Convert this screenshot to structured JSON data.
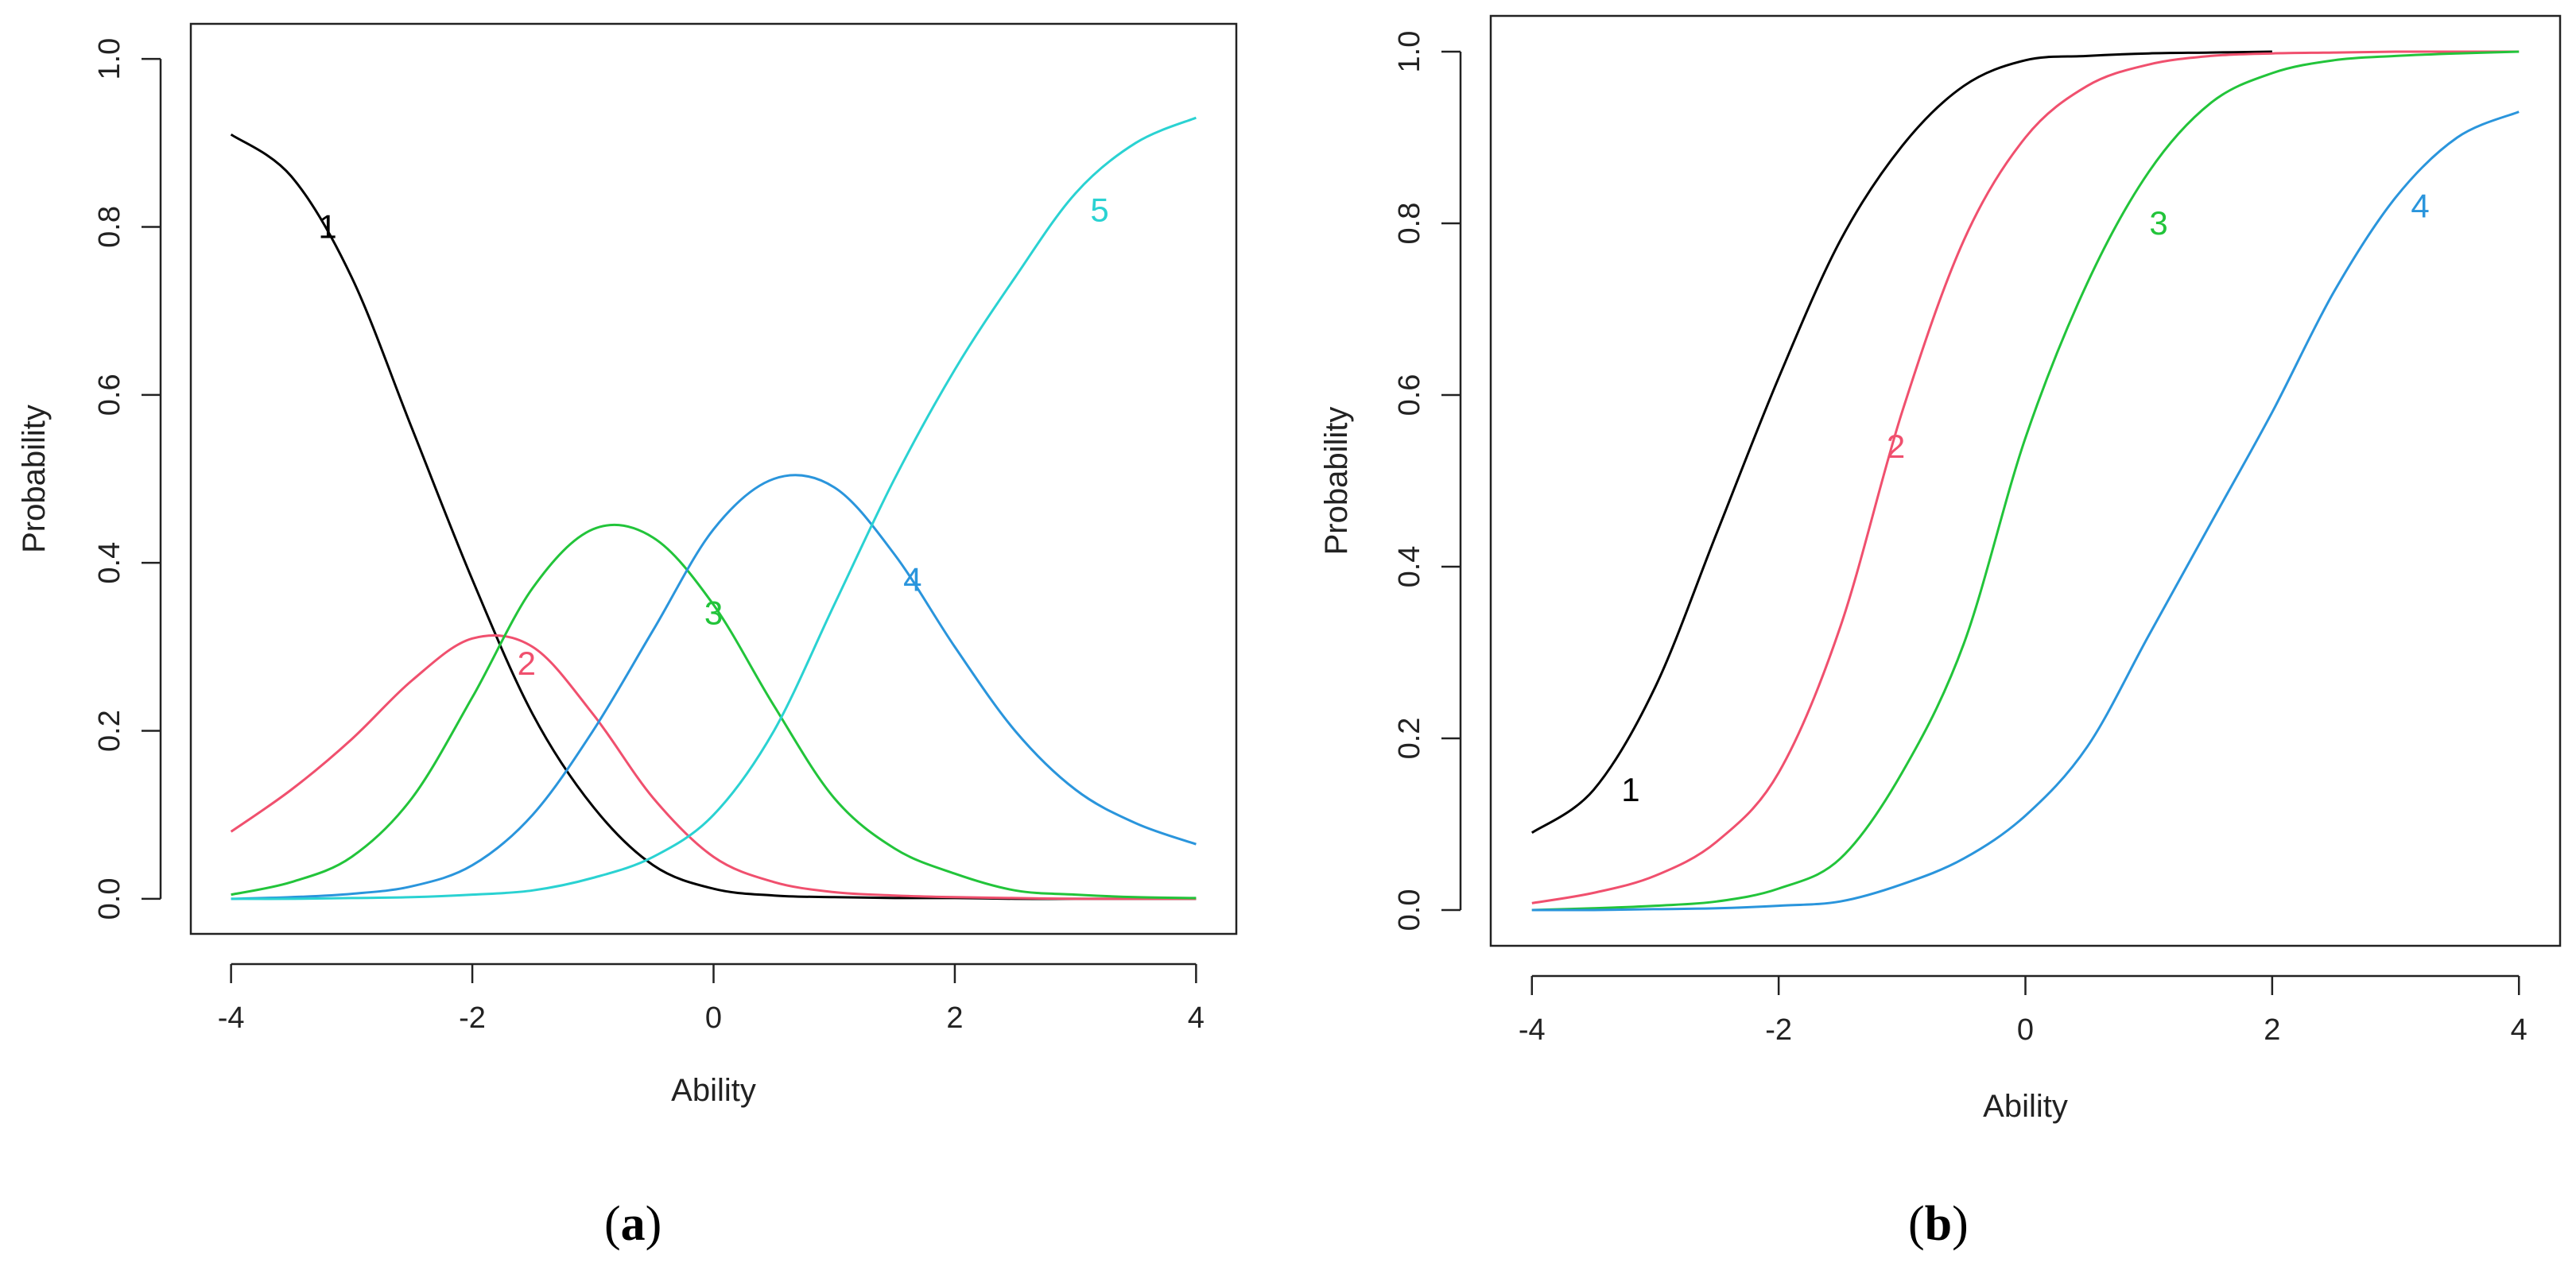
{
  "chart_data": [
    {
      "type": "line",
      "panel": "a",
      "caption_open": "(",
      "caption_letter": "a",
      "caption_close": ")",
      "xlabel": "Ability",
      "ylabel": "Probability",
      "xlim": [
        -4,
        4
      ],
      "ylim": [
        0,
        1
      ],
      "xticks": [
        -4,
        -2,
        0,
        2,
        4
      ],
      "xtick_labels": [
        "-4",
        "-2",
        "0",
        "2",
        "4"
      ],
      "yticks": [
        0,
        0.2,
        0.4,
        0.6,
        0.8,
        1.0
      ],
      "ytick_labels": [
        "0.0",
        "0.2",
        "0.4",
        "0.6",
        "0.8",
        "1.0"
      ],
      "series": [
        {
          "name": "1",
          "color": "#000000",
          "label_pos": [
            -3.2,
            0.8
          ],
          "x": [
            -4,
            -3.5,
            -3,
            -2.5,
            -2,
            -1.5,
            -1,
            -0.5,
            0,
            0.5,
            1,
            1.5,
            2,
            2.5,
            3,
            3.5,
            4
          ],
          "y": [
            0.91,
            0.86,
            0.74,
            0.56,
            0.38,
            0.22,
            0.11,
            0.04,
            0.012,
            0.004,
            0.002,
            0.001,
            0.001,
            0,
            0,
            0,
            0
          ]
        },
        {
          "name": "2",
          "color": "#f0506e",
          "label_pos": [
            -1.55,
            0.28
          ],
          "x": [
            -4,
            -3.5,
            -3,
            -2.5,
            -2,
            -1.5,
            -1,
            -0.5,
            0,
            0.5,
            1,
            1.5,
            2,
            2.5,
            3,
            3.5,
            4
          ],
          "y": [
            0.08,
            0.13,
            0.19,
            0.26,
            0.31,
            0.3,
            0.22,
            0.12,
            0.05,
            0.02,
            0.008,
            0.004,
            0.002,
            0.001,
            0,
            0,
            0
          ]
        },
        {
          "name": "3",
          "color": "#22c43a",
          "label_pos": [
            0.0,
            0.34
          ],
          "x": [
            -4,
            -3.5,
            -3,
            -2.5,
            -2,
            -1.5,
            -1,
            -0.5,
            0,
            0.5,
            1,
            1.5,
            2,
            2.5,
            3,
            3.5,
            4
          ],
          "y": [
            0.005,
            0.02,
            0.05,
            0.12,
            0.24,
            0.37,
            0.44,
            0.43,
            0.35,
            0.23,
            0.12,
            0.06,
            0.03,
            0.01,
            0.005,
            0.002,
            0.001
          ]
        },
        {
          "name": "4",
          "color": "#2a95dc",
          "label_pos": [
            1.65,
            0.38
          ],
          "x": [
            -4,
            -3.5,
            -3,
            -2.5,
            -2,
            -1.5,
            -1,
            -0.5,
            0,
            0.5,
            1,
            1.5,
            2,
            2.5,
            3,
            3.5,
            4
          ],
          "y": [
            0,
            0.002,
            0.006,
            0.015,
            0.04,
            0.1,
            0.2,
            0.32,
            0.44,
            0.5,
            0.49,
            0.41,
            0.3,
            0.2,
            0.13,
            0.09,
            0.065
          ]
        },
        {
          "name": "5",
          "color": "#2ad2d2",
          "label_pos": [
            3.2,
            0.82
          ],
          "x": [
            -4,
            -3.5,
            -3,
            -2.5,
            -2,
            -1.5,
            -1,
            -0.5,
            0,
            0.5,
            1,
            1.5,
            2,
            2.5,
            3,
            3.5,
            4
          ],
          "y": [
            0,
            0,
            0.001,
            0.002,
            0.005,
            0.01,
            0.025,
            0.05,
            0.1,
            0.2,
            0.35,
            0.5,
            0.63,
            0.74,
            0.84,
            0.9,
            0.93
          ]
        }
      ]
    },
    {
      "type": "line",
      "panel": "b",
      "caption_open": "(",
      "caption_letter": "b",
      "caption_close": ")",
      "xlabel": "Ability",
      "ylabel": "Probability",
      "xlim": [
        -4,
        4
      ],
      "ylim": [
        0,
        1
      ],
      "xticks": [
        -4,
        -2,
        0,
        2,
        4
      ],
      "xtick_labels": [
        "-4",
        "-2",
        "0",
        "2",
        "4"
      ],
      "yticks": [
        0,
        0.2,
        0.4,
        0.6,
        0.8,
        1.0
      ],
      "ytick_labels": [
        "0.0",
        "0.2",
        "0.4",
        "0.6",
        "0.8",
        "1.0"
      ],
      "series": [
        {
          "name": "1",
          "color": "#000000",
          "label_pos": [
            -3.2,
            0.14
          ],
          "x": [
            -4,
            -3.5,
            -3,
            -2.5,
            -2,
            -1.5,
            -1,
            -0.5,
            0,
            0.5,
            1,
            1.5,
            2
          ],
          "y": [
            0.09,
            0.14,
            0.26,
            0.44,
            0.62,
            0.78,
            0.89,
            0.96,
            0.99,
            0.995,
            0.998,
            0.999,
            1.0
          ]
        },
        {
          "name": "2",
          "color": "#f0506e",
          "label_pos": [
            -1.05,
            0.54
          ],
          "x": [
            -4,
            -3.5,
            -3,
            -2.5,
            -2,
            -1.5,
            -1,
            -0.5,
            0,
            0.5,
            1,
            1.5,
            2,
            2.5,
            3,
            3.5,
            4
          ],
          "y": [
            0.008,
            0.02,
            0.04,
            0.08,
            0.16,
            0.33,
            0.58,
            0.78,
            0.9,
            0.96,
            0.985,
            0.995,
            0.998,
            0.999,
            1,
            1,
            1
          ]
        },
        {
          "name": "3",
          "color": "#22c43a",
          "label_pos": [
            1.08,
            0.8
          ],
          "x": [
            -4,
            -3.5,
            -3,
            -2.5,
            -2,
            -1.5,
            -1,
            -0.5,
            0,
            0.5,
            1,
            1.5,
            2,
            2.5,
            3,
            3.5,
            4
          ],
          "y": [
            0,
            0.002,
            0.005,
            0.01,
            0.025,
            0.06,
            0.16,
            0.31,
            0.55,
            0.73,
            0.86,
            0.94,
            0.975,
            0.99,
            0.995,
            0.998,
            1
          ]
        },
        {
          "name": "4",
          "color": "#2a95dc",
          "label_pos": [
            3.2,
            0.82
          ],
          "x": [
            -4,
            -3.5,
            -3,
            -2.5,
            -2,
            -1.5,
            -1,
            -0.5,
            0,
            0.5,
            1,
            1.5,
            2,
            2.5,
            3,
            3.5,
            4
          ],
          "y": [
            0,
            0,
            0.001,
            0.002,
            0.005,
            0.01,
            0.03,
            0.06,
            0.11,
            0.19,
            0.32,
            0.45,
            0.58,
            0.72,
            0.83,
            0.9,
            0.93
          ]
        }
      ]
    }
  ]
}
